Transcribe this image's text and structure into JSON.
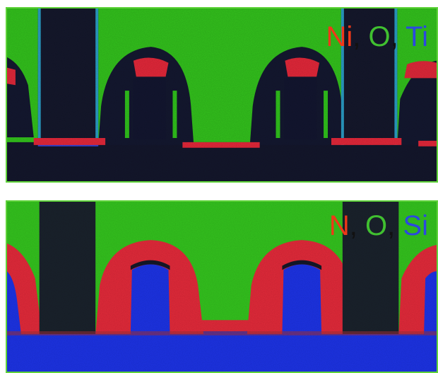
{
  "colors": {
    "background_green": "#34c31e",
    "background_green_light": "#3cd02a",
    "dark_field": "#15172a",
    "red": "#e42a3a",
    "green": "#27b81f",
    "blue_bright": "#1d34e6",
    "blue_dark": "#121a4e",
    "cyan_edge": "#2aa0c8",
    "frame_green": "#5fd23a"
  },
  "panels": [
    {
      "id": "top",
      "legend": {
        "el1": "Ni",
        "sep1": ",",
        "el2": "O",
        "sep2": ",",
        "el3": "Ti",
        "el1_color": "#f03818",
        "el2_color": "#40c030",
        "el3_color": "#2c48e0"
      }
    },
    {
      "id": "bottom",
      "legend": {
        "el1": "N",
        "sep1": ",",
        "el2": "O",
        "sep2": ",",
        "el3": "Si",
        "el1_color": "#f03818",
        "el2_color": "#40c030",
        "el3_color": "#2c48e0"
      }
    }
  ]
}
